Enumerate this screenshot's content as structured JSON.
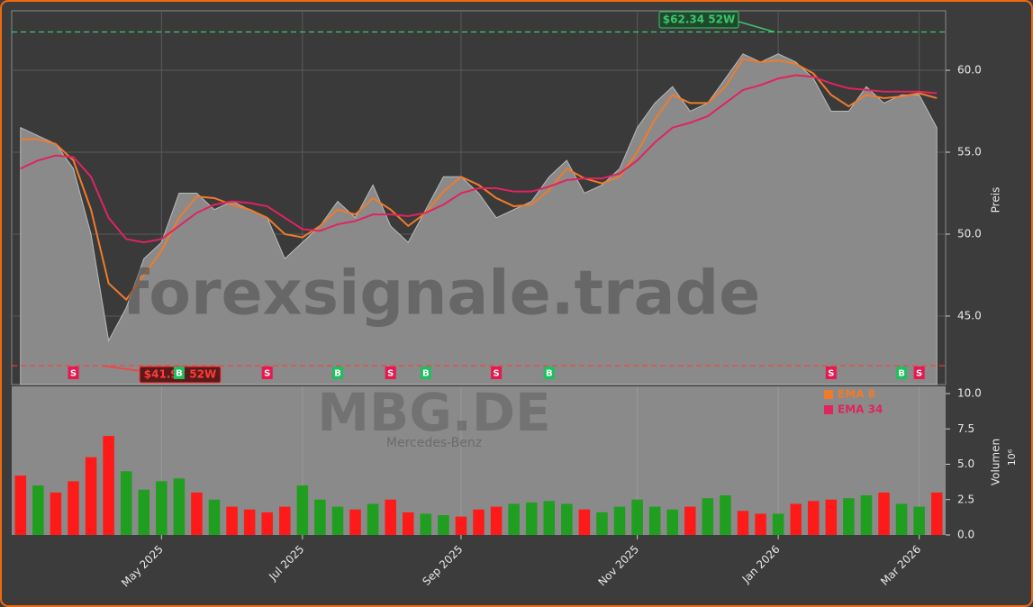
{
  "chart_data": {
    "type": "area",
    "categories": [
      null,
      null,
      null,
      null,
      null,
      null,
      null,
      null,
      "May 2025",
      null,
      null,
      null,
      null,
      null,
      null,
      null,
      "Jul 2025",
      null,
      null,
      null,
      null,
      null,
      null,
      null,
      null,
      "Sep 2025",
      null,
      null,
      null,
      null,
      null,
      null,
      null,
      null,
      null,
      "Nov 2025",
      null,
      null,
      null,
      null,
      null,
      null,
      null,
      "Jan 2026",
      null,
      null,
      null,
      null,
      null,
      null,
      null,
      "Mar 2026",
      null
    ],
    "series": [
      {
        "color": "#8a8a8a",
        "values": [
          56.5,
          56.0,
          55.5,
          54.0,
          50.0,
          43.5,
          45.5,
          48.5,
          49.5,
          52.5,
          52.5,
          51.5,
          52.0,
          51.5,
          51.0,
          48.5,
          49.5,
          50.5,
          52.0,
          51.0,
          53.0,
          50.5,
          49.5,
          51.5,
          53.5,
          53.5,
          52.5,
          51.0,
          51.5,
          52.0,
          53.5,
          54.5,
          52.5,
          53.0,
          54.0,
          56.5,
          58.0,
          59.0,
          57.5,
          58.0,
          59.5,
          61.0,
          60.5,
          61.0,
          60.5,
          59.5,
          57.5,
          57.5,
          59.0,
          58.0,
          58.5,
          58.5,
          56.5
        ]
      },
      {
        "name": "EMA 8",
        "color": "#f07b2c",
        "values": [
          55.8,
          55.8,
          55.5,
          54.5,
          51.5,
          47,
          46,
          47.5,
          49,
          51,
          52.3,
          52.2,
          51.8,
          51.5,
          51,
          50,
          49.8,
          50.5,
          51.5,
          51.2,
          52.2,
          51.5,
          50.5,
          51.3,
          52.6,
          53.5,
          53,
          52.2,
          51.7,
          51.8,
          52.7,
          54,
          53.4,
          53.1,
          53.5,
          55,
          57,
          58.5,
          58,
          58,
          59,
          60.7,
          60.5,
          60.6,
          60.4,
          59.8,
          58.5,
          57.8,
          58.5,
          58.3,
          58.4,
          58.6,
          58.3
        ]
      },
      {
        "name": "EMA 34",
        "color": "#e0245e",
        "values": [
          54,
          54.5,
          54.8,
          54.7,
          53.5,
          51,
          49.7,
          49.5,
          49.7,
          50.5,
          51.3,
          51.8,
          52,
          51.9,
          51.7,
          51,
          50.3,
          50.2,
          50.6,
          50.8,
          51.2,
          51.2,
          51.1,
          51.3,
          51.8,
          52.5,
          52.8,
          52.8,
          52.6,
          52.6,
          52.9,
          53.3,
          53.4,
          53.4,
          53.7,
          54.5,
          55.6,
          56.5,
          56.8,
          57.2,
          58,
          58.8,
          59.1,
          59.5,
          59.7,
          59.6,
          59.2,
          58.9,
          58.8,
          58.7,
          58.7,
          58.7,
          58.6
        ]
      }
    ],
    "ylim": [
      40.82,
      63.63
    ],
    "yticks": [
      {
        "value": 45,
        "label": "45.0"
      },
      {
        "value": 50,
        "label": "50.0"
      },
      {
        "value": 55,
        "label": "55.0"
      },
      {
        "value": 60,
        "label": "60.0"
      }
    ],
    "y_label": "Preis",
    "grid": true,
    "high_52w": {
      "value": 62.34,
      "label": "$62.34 52W",
      "color": "#3ec46d"
    },
    "low_52w": {
      "value": 41.97,
      "label": "$41.97 52W",
      "color": "#ff3b3b"
    },
    "signals": [
      null,
      null,
      null,
      "S",
      null,
      null,
      null,
      null,
      null,
      "B",
      null,
      null,
      null,
      null,
      "S",
      null,
      null,
      null,
      "B",
      null,
      null,
      "S",
      null,
      "B",
      null,
      null,
      null,
      "S",
      null,
      null,
      "B",
      null,
      null,
      null,
      null,
      null,
      null,
      null,
      null,
      null,
      null,
      null,
      null,
      null,
      null,
      null,
      "S",
      null,
      null,
      null,
      "B",
      "S",
      null
    ],
    "volume": {
      "values": [
        4.2,
        3.5,
        3.0,
        3.8,
        5.5,
        7.0,
        4.5,
        3.2,
        3.8,
        4.0,
        3.0,
        2.5,
        2.0,
        1.8,
        1.6,
        2.0,
        3.5,
        2.5,
        2.0,
        1.8,
        2.2,
        2.5,
        1.6,
        1.5,
        1.4,
        1.3,
        1.8,
        2.0,
        2.2,
        2.3,
        2.4,
        2.2,
        1.8,
        1.6,
        2.0,
        2.5,
        2.0,
        1.8,
        2.0,
        2.6,
        2.8,
        1.7,
        1.5,
        1.5,
        2.2,
        2.4,
        2.5,
        2.6,
        2.8,
        3.0,
        2.2,
        2.0,
        3.0
      ],
      "colors": [
        "#ff1a1a",
        "#1f9e1f",
        "#ff1a1a",
        "#ff1a1a",
        "#ff1a1a",
        "#ff1a1a",
        "#1f9e1f",
        "#1f9e1f",
        "#1f9e1f",
        "#1f9e1f",
        "#ff1a1a",
        "#1f9e1f",
        "#ff1a1a",
        "#ff1a1a",
        "#ff1a1a",
        "#ff1a1a",
        "#1f9e1f",
        "#1f9e1f",
        "#1f9e1f",
        "#ff1a1a",
        "#1f9e1f",
        "#ff1a1a",
        "#ff1a1a",
        "#1f9e1f",
        "#1f9e1f",
        "#ff1a1a",
        "#ff1a1a",
        "#ff1a1a",
        "#1f9e1f",
        "#1f9e1f",
        "#1f9e1f",
        "#1f9e1f",
        "#ff1a1a",
        "#1f9e1f",
        "#1f9e1f",
        "#1f9e1f",
        "#1f9e1f",
        "#1f9e1f",
        "#ff1a1a",
        "#1f9e1f",
        "#1f9e1f",
        "#ff1a1a",
        "#ff1a1a",
        "#1f9e1f",
        "#ff1a1a",
        "#ff1a1a",
        "#ff1a1a",
        "#1f9e1f",
        "#1f9e1f",
        "#ff1a1a",
        "#1f9e1f",
        "#1f9e1f",
        "#ff1a1a"
      ],
      "ylim": [
        0,
        10.51
      ],
      "yticks": [
        {
          "value": 0,
          "label": "0.0"
        },
        {
          "value": 2.5,
          "label": "2.5"
        },
        {
          "value": 5,
          "label": "5.0"
        },
        {
          "value": 7.5,
          "label": "7.5"
        },
        {
          "value": 10,
          "label": "10.0"
        }
      ],
      "y_label": "Volumen",
      "scale_label": "10⁶"
    },
    "watermark": "forexsignale.trade",
    "symbol": "MBG.DE",
    "company": "Mercedes-Benz"
  }
}
